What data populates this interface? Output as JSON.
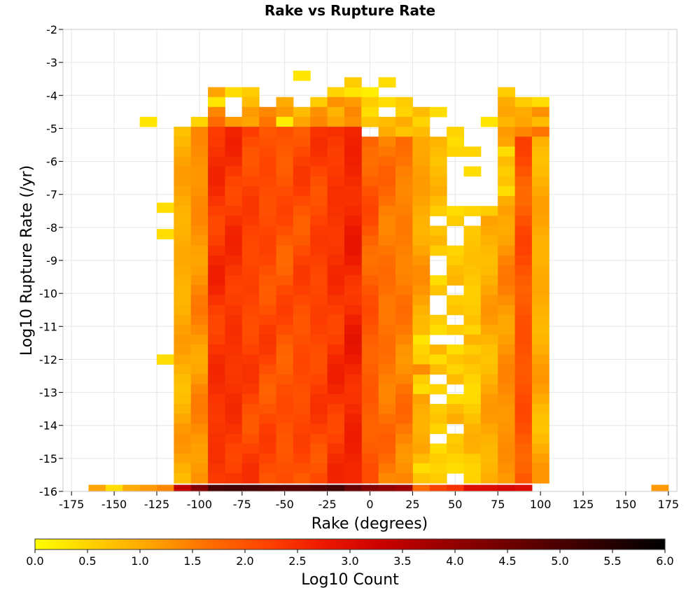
{
  "chart_data": {
    "type": "heatmap",
    "title": "Rake vs Rupture Rate",
    "xlabel": "Rake (degrees)",
    "ylabel": "Log10 Rupture Rate (/yr)",
    "xlim": [
      -180,
      180
    ],
    "ylim": [
      -16,
      -2
    ],
    "xticks": [
      -175,
      -150,
      -125,
      -100,
      -75,
      -50,
      -25,
      0,
      25,
      50,
      75,
      100,
      125,
      150,
      175
    ],
    "yticks": [
      -2,
      -3,
      -4,
      -5,
      -6,
      -7,
      -8,
      -9,
      -10,
      -11,
      -12,
      -13,
      -14,
      -15,
      -16
    ],
    "grid": true,
    "colorbar": {
      "label": "Log10 Count",
      "min": 0.0,
      "max": 6.0,
      "ticks": [
        "0.0",
        "0.5",
        "1.0",
        "1.5",
        "2.0",
        "2.5",
        "3.0",
        "3.5",
        "4.0",
        "4.5",
        "5.0",
        "5.5",
        "6.0"
      ],
      "colors": [
        "#ffff00",
        "#ffd000",
        "#ffa500",
        "#ff7000",
        "#ff4400",
        "#ee1a00",
        "#cc0000",
        "#a00000",
        "#780000",
        "#500000",
        "#280000",
        "#000000"
      ]
    },
    "cell_width": 10,
    "cell_height": 0.35,
    "cells": [
      {
        "x": -160,
        "y": -16,
        "v": 1.1
      },
      {
        "x": -150,
        "y": -16,
        "v": 0.4
      },
      {
        "x": -140,
        "y": -16,
        "v": 1.0
      },
      {
        "x": -130,
        "y": -16,
        "v": 1.2
      },
      {
        "x": -120,
        "y": -16,
        "v": 1.4
      },
      {
        "x": -110,
        "y": -16,
        "v": 3.4
      },
      {
        "x": -100,
        "y": -16,
        "v": 4.2
      },
      {
        "x": -90,
        "y": -16,
        "v": 5.0
      },
      {
        "x": -80,
        "y": -16,
        "v": 5.1
      },
      {
        "x": -70,
        "y": -16,
        "v": 5.0
      },
      {
        "x": -60,
        "y": -16,
        "v": 4.9
      },
      {
        "x": -50,
        "y": -16,
        "v": 4.8
      },
      {
        "x": -40,
        "y": -16,
        "v": 4.8
      },
      {
        "x": -30,
        "y": -16,
        "v": 4.9
      },
      {
        "x": -20,
        "y": -16,
        "v": 5.1
      },
      {
        "x": -10,
        "y": -16,
        "v": 4.6
      },
      {
        "x": 0,
        "y": -16,
        "v": 4.2
      },
      {
        "x": 10,
        "y": -16,
        "v": 4.0
      },
      {
        "x": 20,
        "y": -16,
        "v": 3.8
      },
      {
        "x": 30,
        "y": -16,
        "v": 1.7
      },
      {
        "x": 40,
        "y": -16,
        "v": 2.2
      },
      {
        "x": 50,
        "y": -16,
        "v": 2.4
      },
      {
        "x": 60,
        "y": -16,
        "v": 3.0
      },
      {
        "x": 70,
        "y": -16,
        "v": 3.0
      },
      {
        "x": 80,
        "y": -16,
        "v": 3.1
      },
      {
        "x": 90,
        "y": -16,
        "v": 3.0
      },
      {
        "x": 170,
        "y": -16,
        "v": 1.2
      },
      {
        "x": -120,
        "y": -12.0,
        "v": 0.4
      },
      {
        "x": -120,
        "y": -8.2,
        "v": 0.4
      },
      {
        "x": -120,
        "y": -7.4,
        "v": 0.4
      },
      {
        "x": -130,
        "y": -4.8,
        "v": 0.3
      },
      {
        "x": -40,
        "y": -3.4,
        "v": 0.3
      },
      {
        "x": -90,
        "y": -3.9,
        "v": 1.1
      },
      {
        "x": -80,
        "y": -3.9,
        "v": 0.4
      },
      {
        "x": -70,
        "y": -3.9,
        "v": 0.6
      },
      {
        "x": -20,
        "y": -3.9,
        "v": 0.5
      },
      {
        "x": -10,
        "y": -3.9,
        "v": 0.3
      },
      {
        "x": 0,
        "y": -3.9,
        "v": 0.2
      },
      {
        "x": -10,
        "y": -3.6,
        "v": 0.6
      },
      {
        "x": 10,
        "y": -3.6,
        "v": 0.4
      },
      {
        "x": 80,
        "y": -3.9,
        "v": 0.6
      },
      {
        "x": -90,
        "y": -4.2,
        "v": 0.3
      },
      {
        "x": -70,
        "y": -4.2,
        "v": 0.8
      },
      {
        "x": -50,
        "y": -4.2,
        "v": 1.0
      },
      {
        "x": -30,
        "y": -4.2,
        "v": 0.6
      },
      {
        "x": -20,
        "y": -4.2,
        "v": 1.3
      },
      {
        "x": -10,
        "y": -4.2,
        "v": 1.2
      },
      {
        "x": 0,
        "y": -4.2,
        "v": 0.6
      },
      {
        "x": 10,
        "y": -4.2,
        "v": 0.4
      },
      {
        "x": 20,
        "y": -4.2,
        "v": 0.6
      },
      {
        "x": 80,
        "y": -4.2,
        "v": 1.0
      },
      {
        "x": 90,
        "y": -4.2,
        "v": 0.6
      },
      {
        "x": 100,
        "y": -4.2,
        "v": 0.4
      },
      {
        "x": -90,
        "y": -4.5,
        "v": 1.4
      },
      {
        "x": -70,
        "y": -4.5,
        "v": 1.2
      },
      {
        "x": -60,
        "y": -4.5,
        "v": 1.4
      },
      {
        "x": -50,
        "y": -4.5,
        "v": 1.2
      },
      {
        "x": -40,
        "y": -4.5,
        "v": 0.8
      },
      {
        "x": -30,
        "y": -4.5,
        "v": 1.3
      },
      {
        "x": -20,
        "y": -4.5,
        "v": 0.9
      },
      {
        "x": -10,
        "y": -4.5,
        "v": 1.4
      },
      {
        "x": 0,
        "y": -4.5,
        "v": 0.4
      },
      {
        "x": 20,
        "y": -4.5,
        "v": 0.5
      },
      {
        "x": 30,
        "y": -4.5,
        "v": 0.8
      },
      {
        "x": 40,
        "y": -4.5,
        "v": 0.4
      },
      {
        "x": 80,
        "y": -4.5,
        "v": 1.1
      },
      {
        "x": 90,
        "y": -4.5,
        "v": 1.0
      },
      {
        "x": 100,
        "y": -4.5,
        "v": 1.3
      },
      {
        "x": -100,
        "y": -4.8,
        "v": 0.5
      },
      {
        "x": -90,
        "y": -4.8,
        "v": 1.7
      },
      {
        "x": -80,
        "y": -4.8,
        "v": 1.2
      },
      {
        "x": -70,
        "y": -4.8,
        "v": 1.1
      },
      {
        "x": -60,
        "y": -4.8,
        "v": 1.6
      },
      {
        "x": -50,
        "y": -4.8,
        "v": 0.2
      },
      {
        "x": -40,
        "y": -4.8,
        "v": 1.1
      },
      {
        "x": -30,
        "y": -4.8,
        "v": 1.4
      },
      {
        "x": -20,
        "y": -4.8,
        "v": 1.1
      },
      {
        "x": -10,
        "y": -4.8,
        "v": 1.3
      },
      {
        "x": 0,
        "y": -4.8,
        "v": 0.7
      },
      {
        "x": 10,
        "y": -4.8,
        "v": 0.8
      },
      {
        "x": 20,
        "y": -4.8,
        "v": 1.0
      },
      {
        "x": 30,
        "y": -4.8,
        "v": 0.5
      },
      {
        "x": 70,
        "y": -4.8,
        "v": 0.3
      },
      {
        "x": 80,
        "y": -4.8,
        "v": 0.9
      },
      {
        "x": 90,
        "y": -4.8,
        "v": 1.1
      },
      {
        "x": 100,
        "y": -4.8,
        "v": 0.8
      },
      {
        "x": 10,
        "y": -5.1,
        "v": 1.0
      },
      {
        "x": 20,
        "y": -5.1,
        "v": 0.7
      },
      {
        "x": 30,
        "y": -5.1,
        "v": 0.8
      },
      {
        "x": 50,
        "y": -5.1,
        "v": 0.5
      },
      {
        "x": 50,
        "y": -5.4,
        "v": 0.4
      },
      {
        "x": 50,
        "y": -5.7,
        "v": 0.5
      },
      {
        "x": 60,
        "y": -5.7,
        "v": 0.5
      },
      {
        "x": 60,
        "y": -6.3,
        "v": 0.4
      },
      {
        "x": 40,
        "y": -5.4,
        "v": 0.9
      },
      {
        "x": 40,
        "y": -5.7,
        "v": 0.8
      },
      {
        "x": 40,
        "y": -6.0,
        "v": 0.7
      },
      {
        "x": 40,
        "y": -6.3,
        "v": 0.8
      },
      {
        "x": 40,
        "y": -6.6,
        "v": 0.9
      },
      {
        "x": 40,
        "y": -6.9,
        "v": 1.0
      },
      {
        "x": 40,
        "y": -7.2,
        "v": 0.8
      },
      {
        "x": 40,
        "y": -7.5,
        "v": 0.6
      },
      {
        "x": 50,
        "y": -7.5,
        "v": 0.4
      },
      {
        "x": 50,
        "y": -7.8,
        "v": 0.6
      },
      {
        "x": 60,
        "y": -7.5,
        "v": 0.5
      },
      {
        "x": 70,
        "y": -7.5,
        "v": 0.6
      },
      {
        "x": 80,
        "y": -5.1,
        "v": 1.2
      },
      {
        "x": 90,
        "y": -5.1,
        "v": 1.4
      },
      {
        "x": 100,
        "y": -5.1,
        "v": 1.6
      },
      {
        "x": 80,
        "y": -5.4,
        "v": 1.1
      },
      {
        "x": 80,
        "y": -5.7,
        "v": 0.4
      },
      {
        "x": 80,
        "y": -6.0,
        "v": 0.8
      },
      {
        "x": 80,
        "y": -6.3,
        "v": 0.6
      },
      {
        "x": 80,
        "y": -6.6,
        "v": 0.7
      },
      {
        "x": 80,
        "y": -6.9,
        "v": 0.4
      },
      {
        "x": 80,
        "y": -7.2,
        "v": 1.0
      },
      {
        "x": 40,
        "y": -8.1,
        "v": 0.7
      },
      {
        "x": 40,
        "y": -8.4,
        "v": 0.9
      },
      {
        "x": 40,
        "y": -8.7,
        "v": 0.6
      },
      {
        "x": 50,
        "y": -8.7,
        "v": 0.5
      },
      {
        "x": 50,
        "y": -9.0,
        "v": 0.6
      },
      {
        "x": 50,
        "y": -9.3,
        "v": 0.8
      },
      {
        "x": 50,
        "y": -9.6,
        "v": 0.9
      },
      {
        "x": 40,
        "y": -9.6,
        "v": 0.4
      },
      {
        "x": 40,
        "y": -9.9,
        "v": 0.7
      },
      {
        "x": 50,
        "y": -10.2,
        "v": 0.6
      },
      {
        "x": 50,
        "y": -10.5,
        "v": 0.7
      },
      {
        "x": 40,
        "y": -10.8,
        "v": 0.6
      },
      {
        "x": 40,
        "y": -11.1,
        "v": 0.4
      },
      {
        "x": 50,
        "y": -11.1,
        "v": 0.6
      },
      {
        "x": 60,
        "y": -11.1,
        "v": 0.5
      },
      {
        "x": 30,
        "y": -11.4,
        "v": 0.3
      },
      {
        "x": 30,
        "y": -11.7,
        "v": 0.5
      },
      {
        "x": 40,
        "y": -11.7,
        "v": 0.9
      },
      {
        "x": 50,
        "y": -11.7,
        "v": 0.4
      },
      {
        "x": 60,
        "y": -11.7,
        "v": 0.6
      },
      {
        "x": 30,
        "y": -12.0,
        "v": 0.6
      },
      {
        "x": 40,
        "y": -12.0,
        "v": 0.4
      },
      {
        "x": 50,
        "y": -12.0,
        "v": 0.7
      },
      {
        "x": 40,
        "y": -12.3,
        "v": 0.8
      },
      {
        "x": 50,
        "y": -12.3,
        "v": 0.5
      },
      {
        "x": 30,
        "y": -12.6,
        "v": 0.6
      },
      {
        "x": 50,
        "y": -12.6,
        "v": 0.8
      },
      {
        "x": 30,
        "y": -12.9,
        "v": 0.4
      },
      {
        "x": 40,
        "y": -12.9,
        "v": 0.5
      },
      {
        "x": 50,
        "y": -13.2,
        "v": 0.4
      },
      {
        "x": 40,
        "y": -13.5,
        "v": 0.6
      },
      {
        "x": 50,
        "y": -13.5,
        "v": 0.8
      },
      {
        "x": 40,
        "y": -13.8,
        "v": 0.7
      },
      {
        "x": 50,
        "y": -13.8,
        "v": 1.0
      },
      {
        "x": 40,
        "y": -14.1,
        "v": 0.5
      },
      {
        "x": 50,
        "y": -14.4,
        "v": 0.6
      },
      {
        "x": 40,
        "y": -14.7,
        "v": 0.4
      },
      {
        "x": 50,
        "y": -14.7,
        "v": 0.7
      },
      {
        "x": 30,
        "y": -15.0,
        "v": 0.8
      },
      {
        "x": 40,
        "y": -15.0,
        "v": 0.6
      },
      {
        "x": 50,
        "y": -15.0,
        "v": 0.5
      },
      {
        "x": 60,
        "y": -15.0,
        "v": 0.6
      },
      {
        "x": 30,
        "y": -15.3,
        "v": 0.4
      },
      {
        "x": 40,
        "y": -15.3,
        "v": 0.5
      },
      {
        "x": 50,
        "y": -15.3,
        "v": 0.4
      },
      {
        "x": 60,
        "y": -15.3,
        "v": 0.5
      },
      {
        "x": 30,
        "y": -15.6,
        "v": 0.7
      },
      {
        "x": 40,
        "y": -15.6,
        "v": 0.6
      }
    ]
  }
}
